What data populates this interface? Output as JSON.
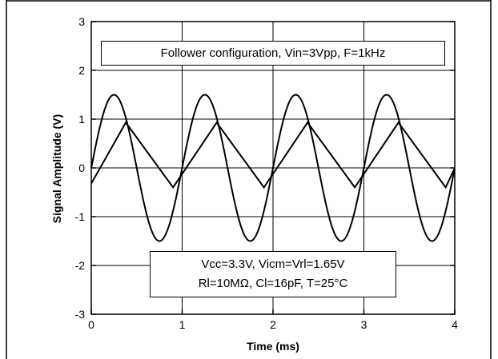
{
  "chart_data": {
    "type": "line",
    "title": "Follower configuration, Vin=3Vpp, F=1kHz",
    "conditions": [
      "Vcc=3.3V, Vicm=Vrl=1.65V",
      "Rl=10MΩ, Cl=16pF, T=25°C"
    ],
    "xlabel": "Time (ms)",
    "ylabel": "Signal Amplitude (V)",
    "xlim": [
      0,
      4
    ],
    "ylim": [
      -3,
      3
    ],
    "xticks": [
      "0",
      "1",
      "2",
      "3",
      "4"
    ],
    "yticks": [
      "-3",
      "-2",
      "-1",
      "0",
      "1",
      "2",
      "3"
    ],
    "grid": true,
    "series": [
      {
        "kind": "sine input",
        "x": [
          0,
          0.125,
          0.25,
          0.375,
          0.5,
          0.625,
          0.75,
          0.875,
          1.0,
          1.125,
          1.25,
          1.375,
          1.5,
          1.625,
          1.75,
          1.875,
          2.0,
          2.125,
          2.25,
          2.375,
          2.5,
          2.625,
          2.75,
          2.875,
          3.0,
          3.125,
          3.25,
          3.375,
          3.5,
          3.625,
          3.75,
          3.875,
          4.0
        ],
        "values": [
          0,
          1.06,
          1.5,
          1.06,
          0,
          -1.06,
          -1.5,
          -1.06,
          0,
          1.06,
          1.5,
          1.06,
          0,
          -1.06,
          -1.5,
          -1.06,
          0,
          1.06,
          1.5,
          1.06,
          0,
          -1.06,
          -1.5,
          -1.06,
          0,
          1.06,
          1.5,
          1.06,
          0,
          -1.06,
          -1.5,
          -1.06,
          0
        ]
      },
      {
        "kind": "output (slew-limited)",
        "x": [
          0,
          0.38,
          0.9,
          1.38,
          1.9,
          2.38,
          2.9,
          3.38,
          3.9,
          4.0
        ],
        "values": [
          -0.32,
          0.93,
          -0.4,
          0.93,
          -0.4,
          0.93,
          -0.4,
          0.93,
          -0.4,
          0.0
        ]
      }
    ]
  },
  "style": {
    "line_color": "#000000",
    "grid_color": "#000000",
    "background": "#ffffff"
  }
}
